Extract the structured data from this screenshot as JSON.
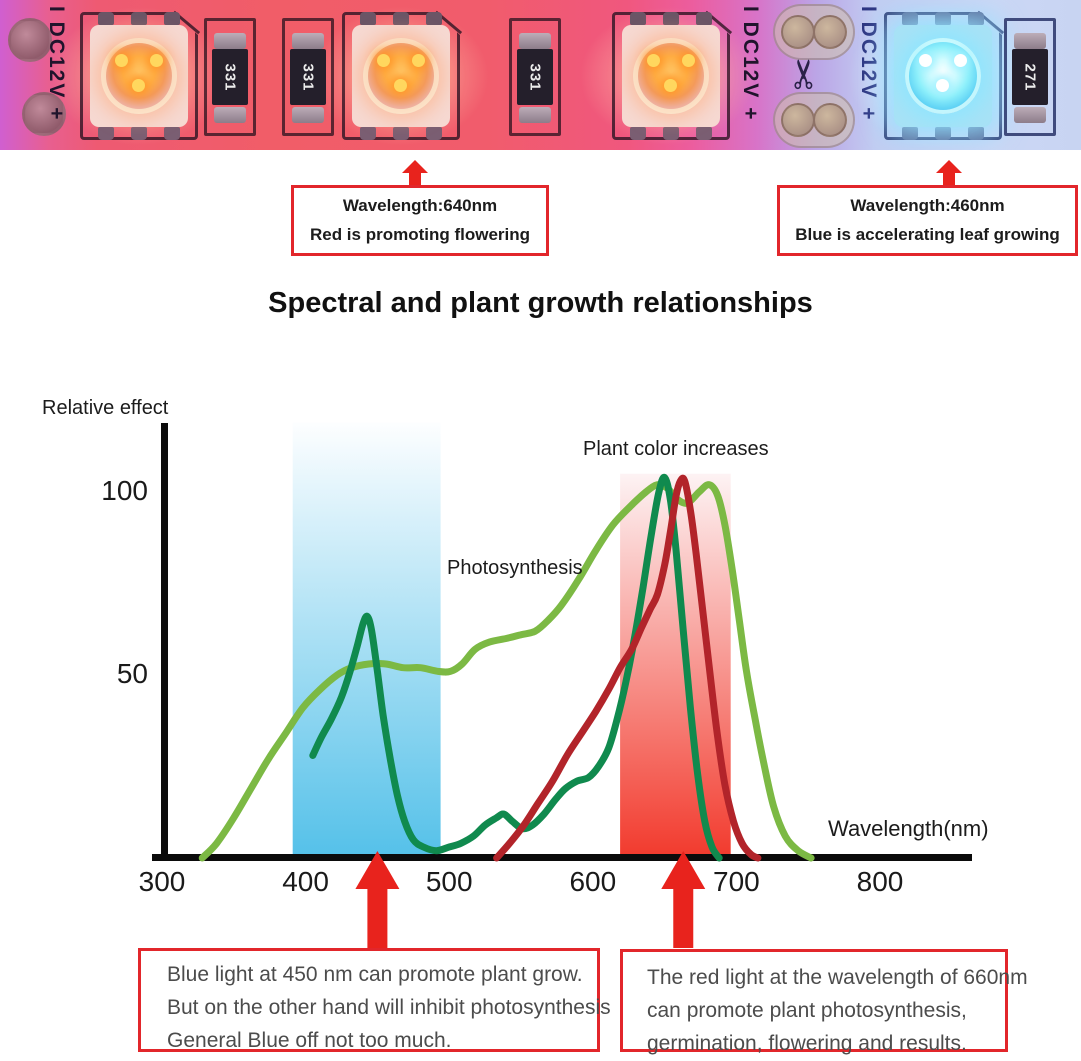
{
  "title": "Spectral and plant growth relationships",
  "colors": {
    "callout_border": "#e2262b",
    "arrow_red": "#e8231d",
    "photosynthesis_curve": "#7cb944",
    "plant_green_curve": "#108a4e",
    "plant_red_curve": "#b2242a"
  },
  "strip": {
    "markings": [
      "I DC12V +",
      "I DC12V +",
      "I DC12V +"
    ],
    "resistors": [
      {
        "label": "331"
      },
      {
        "label": "331"
      },
      {
        "label": "331"
      },
      {
        "label": "271"
      }
    ],
    "leds": [
      {
        "type": "red"
      },
      {
        "type": "red"
      },
      {
        "type": "red"
      },
      {
        "type": "blue"
      }
    ],
    "scissors_icon": "✂"
  },
  "callouts": {
    "top_left": {
      "line1": "Wavelength:640nm",
      "line2": "Red is promoting flowering"
    },
    "top_right": {
      "line1": "Wavelength:460nm",
      "line2": "Blue is accelerating leaf growing"
    },
    "bottom_left": {
      "lines": [
        "Blue light at 450 nm can promote plant grow.",
        "But on the other hand will inhibit photosynthesis",
        "General Blue off not too much."
      ]
    },
    "bottom_right": {
      "lines": [
        "The red light at the wavelength of 660nm",
        "can promote plant photosynthesis,",
        "germination, flowering and results."
      ]
    }
  },
  "chart_data": {
    "type": "line",
    "title": "Spectral and plant growth relationships",
    "xlabel": "Wavelength(nm)",
    "ylabel": "Relative effect",
    "x_ticks": [
      300,
      400,
      500,
      600,
      700,
      800
    ],
    "y_ticks": [
      50,
      100
    ],
    "xlim": [
      300,
      860
    ],
    "ylim": [
      0,
      120
    ],
    "grid": false,
    "legend_position": "none",
    "annotations": {
      "plant_color": "Plant color increases",
      "photosynthesis": "Photosynthesis"
    },
    "annotation_arrows_nm": [
      450,
      663
    ],
    "bands": [
      {
        "name": "blue-light-band",
        "from_nm": 391,
        "to_nm": 494,
        "top_value": 119,
        "color_top": "#fdfeff",
        "color_bottom": "#55c1e9"
      },
      {
        "name": "red-light-band",
        "from_nm": 619,
        "to_nm": 696,
        "top_value": 105,
        "color_top": "#fdf3f4",
        "color_bottom": "#f23b2e"
      }
    ],
    "series": [
      {
        "id": "photosynthesis",
        "name": "Photosynthesis action spectrum",
        "color": "#7cb944",
        "points": [
          [
            328,
            0
          ],
          [
            338,
            4
          ],
          [
            350,
            11
          ],
          [
            362,
            19
          ],
          [
            374,
            27
          ],
          [
            386,
            34
          ],
          [
            398,
            41
          ],
          [
            410,
            46
          ],
          [
            422,
            50
          ],
          [
            432,
            52
          ],
          [
            444,
            53
          ],
          [
            456,
            53
          ],
          [
            468,
            52
          ],
          [
            480,
            52
          ],
          [
            492,
            51
          ],
          [
            501,
            51
          ],
          [
            509,
            53
          ],
          [
            518,
            57
          ],
          [
            528,
            59
          ],
          [
            540,
            60
          ],
          [
            550,
            61
          ],
          [
            560,
            62
          ],
          [
            569,
            65
          ],
          [
            578,
            69
          ],
          [
            590,
            76
          ],
          [
            602,
            84
          ],
          [
            614,
            91
          ],
          [
            626,
            96
          ],
          [
            637,
            100
          ],
          [
            645,
            102
          ],
          [
            652,
            101
          ],
          [
            659,
            98
          ],
          [
            666,
            97
          ],
          [
            674,
            100
          ],
          [
            681,
            102
          ],
          [
            687,
            99
          ],
          [
            692,
            91
          ],
          [
            697,
            79
          ],
          [
            702,
            65
          ],
          [
            707,
            51
          ],
          [
            713,
            38
          ],
          [
            719,
            26
          ],
          [
            726,
            14
          ],
          [
            734,
            6
          ],
          [
            743,
            2
          ],
          [
            752,
            0
          ]
        ]
      },
      {
        "id": "plant_green",
        "name": "Plant color increase (green curve)",
        "color": "#108a4e",
        "points": [
          [
            405,
            28
          ],
          [
            411,
            33
          ],
          [
            418,
            38
          ],
          [
            425,
            44
          ],
          [
            431,
            51
          ],
          [
            436,
            58
          ],
          [
            440,
            64
          ],
          [
            443,
            66
          ],
          [
            446,
            62
          ],
          [
            450,
            51
          ],
          [
            454,
            39
          ],
          [
            459,
            27
          ],
          [
            464,
            17
          ],
          [
            469,
            10
          ],
          [
            475,
            5
          ],
          [
            482,
            3
          ],
          [
            491,
            2
          ],
          [
            500,
            3
          ],
          [
            508,
            4
          ],
          [
            517,
            6
          ],
          [
            525,
            9
          ],
          [
            533,
            11
          ],
          [
            538,
            12
          ],
          [
            544,
            10
          ],
          [
            551,
            8
          ],
          [
            558,
            9
          ],
          [
            566,
            12
          ],
          [
            574,
            16
          ],
          [
            581,
            19
          ],
          [
            589,
            21
          ],
          [
            597,
            22
          ],
          [
            604,
            25
          ],
          [
            611,
            30
          ],
          [
            617,
            38
          ],
          [
            623,
            48
          ],
          [
            629,
            60
          ],
          [
            635,
            74
          ],
          [
            641,
            89
          ],
          [
            646,
            100
          ],
          [
            650,
            104
          ],
          [
            654,
            98
          ],
          [
            658,
            84
          ],
          [
            663,
            62
          ],
          [
            668,
            41
          ],
          [
            673,
            23
          ],
          [
            678,
            10
          ],
          [
            683,
            3
          ],
          [
            688,
            0
          ]
        ]
      },
      {
        "id": "plant_red",
        "name": "Plant color increase (red curve)",
        "color": "#b2242a",
        "points": [
          [
            533,
            0
          ],
          [
            542,
            4
          ],
          [
            552,
            9
          ],
          [
            562,
            15
          ],
          [
            572,
            21
          ],
          [
            582,
            28
          ],
          [
            592,
            34
          ],
          [
            602,
            40
          ],
          [
            611,
            46
          ],
          [
            619,
            52
          ],
          [
            627,
            57
          ],
          [
            634,
            63
          ],
          [
            640,
            68
          ],
          [
            645,
            72
          ],
          [
            650,
            80
          ],
          [
            654,
            89
          ],
          [
            658,
            99
          ],
          [
            661,
            103
          ],
          [
            664,
            103
          ],
          [
            668,
            95
          ],
          [
            672,
            83
          ],
          [
            677,
            66
          ],
          [
            682,
            49
          ],
          [
            687,
            33
          ],
          [
            692,
            20
          ],
          [
            698,
            10
          ],
          [
            704,
            4
          ],
          [
            710,
            1
          ],
          [
            715,
            0
          ]
        ]
      }
    ]
  }
}
